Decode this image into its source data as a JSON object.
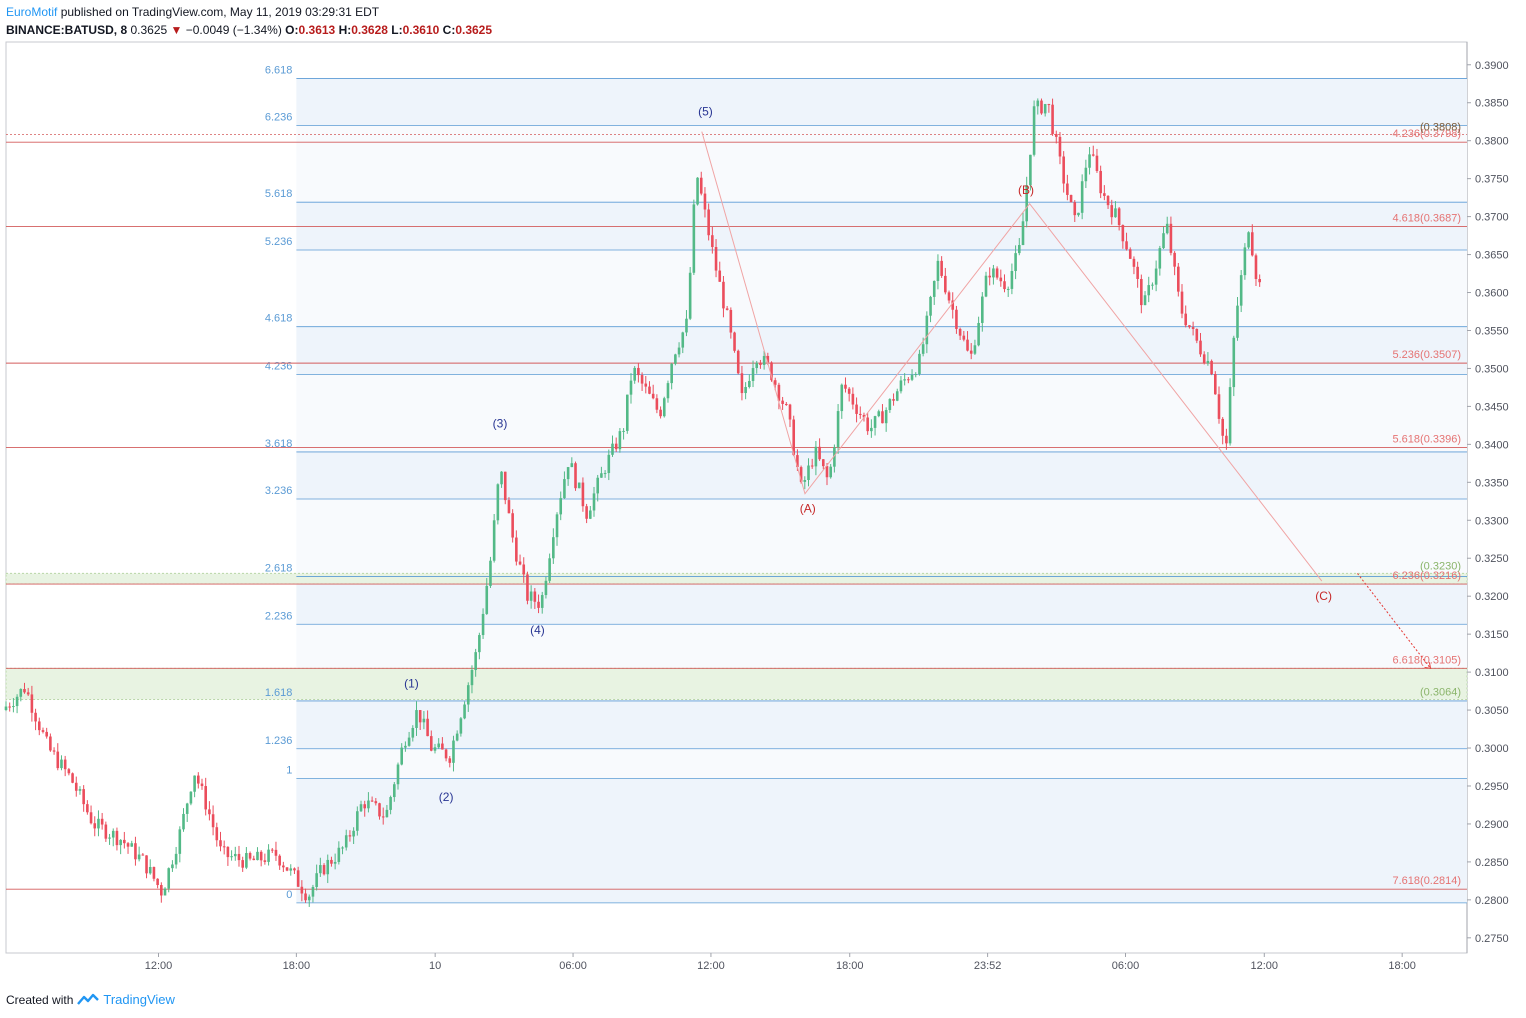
{
  "header": {
    "author": "EuroMotif",
    "published": "published on TradingView.com, May 11, 2019 03:29:31 EDT",
    "symbol": "BINANCE:BATUSD, 8",
    "last": "0.3625",
    "change": "−0.0049 (−1.34%)",
    "o_label": "O:",
    "o_val": "0.3613",
    "h_label": "H:",
    "h_val": "0.3628",
    "l_label": "L:",
    "l_val": "0.3610",
    "c_label": "C:",
    "c_val": "0.3625"
  },
  "footer": {
    "created": "Created with",
    "brand": "TradingView",
    "logo_icon": "tradingview-logo-icon"
  },
  "colors": {
    "up": "#53b987",
    "down": "#eb4d5c",
    "fib_blue": "#5b9bd5",
    "fib_red": "#e57373",
    "fib_green": "#8bb56b",
    "wave_blue": "#283593",
    "wave_red": "#c62828"
  },
  "chart_data": {
    "type": "candlestick",
    "ylim": [
      0.273,
      0.393
    ],
    "y_ticks": [
      "0.3900",
      "0.3850",
      "0.3800",
      "0.3750",
      "0.3700",
      "0.3650",
      "0.3600",
      "0.3550",
      "0.3500",
      "0.3450",
      "0.3400",
      "0.3350",
      "0.3300",
      "0.3250",
      "0.3200",
      "0.3150",
      "0.3100",
      "0.3050",
      "0.3000",
      "0.2950",
      "0.2900",
      "0.2850",
      "0.2800",
      "0.2750"
    ],
    "x_ticks": [
      {
        "label": "12:00",
        "t": 0.167
      },
      {
        "label": "18:00",
        "t": 0.318
      },
      {
        "label": "10",
        "t": 0.47
      },
      {
        "label": "06:00",
        "t": 0.621
      },
      {
        "label": "12:00",
        "t": 0.772
      },
      {
        "label": "18:00",
        "t": 0.924
      },
      {
        "label": "23:52",
        "t": 1.075
      },
      {
        "label": "06:00",
        "t": 1.226
      },
      {
        "label": "12:00",
        "t": 1.378
      },
      {
        "label": "18:00",
        "t": 1.529
      }
    ],
    "x_range": [
      0,
      1.6
    ],
    "left_fib": {
      "levels": [
        {
          "label": "6.618",
          "price": 0.3882
        },
        {
          "label": "6.236",
          "price": 0.382
        },
        {
          "label": "5.618",
          "price": 0.3719
        },
        {
          "label": "5.236",
          "price": 0.3656
        },
        {
          "label": "4.618",
          "price": 0.3555
        },
        {
          "label": "4.236",
          "price": 0.3492
        },
        {
          "label": "3.618",
          "price": 0.339
        },
        {
          "label": "3.236",
          "price": 0.3328
        },
        {
          "label": "2.618",
          "price": 0.3226
        },
        {
          "label": "2.236",
          "price": 0.3163
        },
        {
          "label": "1.618",
          "price": 0.3062
        },
        {
          "label": "1.236",
          "price": 0.2999
        },
        {
          "label": "1",
          "price": 0.296
        },
        {
          "label": "0",
          "price": 0.2796
        }
      ],
      "t_start": 0.318
    },
    "right_fib": [
      {
        "label": "4.236",
        "value": "(0.3798)",
        "price": 0.3798
      },
      {
        "label": "4.618",
        "value": "(0.3687)",
        "price": 0.3687
      },
      {
        "label": "5.236",
        "value": "(0.3507)",
        "price": 0.3507
      },
      {
        "label": "5.618",
        "value": "(0.3396)",
        "price": 0.3396
      },
      {
        "label": "6.236",
        "value": "(0.3216)",
        "price": 0.3216
      },
      {
        "label": "6.618",
        "value": "(0.3105)",
        "price": 0.3105
      },
      {
        "label": "7.618",
        "value": "(0.2814)",
        "price": 0.2814
      }
    ],
    "green_labels": [
      {
        "value": "(0.3808)",
        "price": 0.3808
      },
      {
        "value": "(0.3230)",
        "price": 0.323
      },
      {
        "value": "(0.3064)",
        "price": 0.3064
      }
    ],
    "green_zones": [
      [
        0.3216,
        0.323
      ],
      [
        0.3064,
        0.3105
      ]
    ],
    "waves": [
      {
        "label": "(1)",
        "t": 0.444,
        "price": 0.308,
        "color": "blue"
      },
      {
        "label": "(2)",
        "t": 0.482,
        "price": 0.293,
        "color": "blue"
      },
      {
        "label": "(3)",
        "t": 0.541,
        "price": 0.3422,
        "color": "blue"
      },
      {
        "label": "(4)",
        "t": 0.582,
        "price": 0.315,
        "color": "blue"
      },
      {
        "label": "(5)",
        "t": 0.766,
        "price": 0.3833,
        "color": "blue"
      },
      {
        "label": "(A)",
        "t": 0.878,
        "price": 0.331,
        "color": "red"
      },
      {
        "label": "(B)",
        "t": 1.117,
        "price": 0.373,
        "color": "red"
      },
      {
        "label": "(C)",
        "t": 1.443,
        "price": 0.3195,
        "color": "red"
      }
    ],
    "wave_lines": [
      [
        0.762,
        0.3812
      ],
      [
        0.875,
        0.3335
      ],
      [
        1.121,
        0.3717
      ],
      [
        1.441,
        0.322
      ]
    ],
    "projection": [
      [
        1.48,
        0.323
      ],
      [
        1.56,
        0.3105
      ]
    ],
    "path": [
      [
        0.0,
        0.305
      ],
      [
        0.025,
        0.308
      ],
      [
        0.05,
        0.3
      ],
      [
        0.075,
        0.296
      ],
      [
        0.1,
        0.29
      ],
      [
        0.13,
        0.288
      ],
      [
        0.155,
        0.285
      ],
      [
        0.175,
        0.281
      ],
      [
        0.195,
        0.289
      ],
      [
        0.21,
        0.297
      ],
      [
        0.225,
        0.292
      ],
      [
        0.24,
        0.286
      ],
      [
        0.27,
        0.285
      ],
      [
        0.3,
        0.286
      ],
      [
        0.32,
        0.283
      ],
      [
        0.335,
        0.2805
      ],
      [
        0.35,
        0.284
      ],
      [
        0.375,
        0.287
      ],
      [
        0.395,
        0.293
      ],
      [
        0.42,
        0.291
      ],
      [
        0.44,
        0.301
      ],
      [
        0.455,
        0.305
      ],
      [
        0.47,
        0.3
      ],
      [
        0.49,
        0.299
      ],
      [
        0.505,
        0.306
      ],
      [
        0.52,
        0.313
      ],
      [
        0.535,
        0.325
      ],
      [
        0.545,
        0.337
      ],
      [
        0.56,
        0.327
      ],
      [
        0.575,
        0.32
      ],
      [
        0.59,
        0.319
      ],
      [
        0.605,
        0.33
      ],
      [
        0.62,
        0.338
      ],
      [
        0.64,
        0.331
      ],
      [
        0.66,
        0.337
      ],
      [
        0.68,
        0.342
      ],
      [
        0.69,
        0.35
      ],
      [
        0.7,
        0.348
      ],
      [
        0.72,
        0.344
      ],
      [
        0.735,
        0.352
      ],
      [
        0.75,
        0.356
      ],
      [
        0.76,
        0.376
      ],
      [
        0.77,
        0.37
      ],
      [
        0.78,
        0.364
      ],
      [
        0.795,
        0.356
      ],
      [
        0.81,
        0.346
      ],
      [
        0.825,
        0.352
      ],
      [
        0.84,
        0.35
      ],
      [
        0.86,
        0.344
      ],
      [
        0.875,
        0.334
      ],
      [
        0.89,
        0.339
      ],
      [
        0.905,
        0.335
      ],
      [
        0.92,
        0.348
      ],
      [
        0.935,
        0.345
      ],
      [
        0.95,
        0.342
      ],
      [
        0.965,
        0.344
      ],
      [
        0.985,
        0.348
      ],
      [
        1.005,
        0.351
      ],
      [
        1.025,
        0.364
      ],
      [
        1.04,
        0.358
      ],
      [
        1.06,
        0.351
      ],
      [
        1.08,
        0.363
      ],
      [
        1.1,
        0.361
      ],
      [
        1.115,
        0.366
      ],
      [
        1.13,
        0.384
      ],
      [
        1.145,
        0.385
      ],
      [
        1.16,
        0.376
      ],
      [
        1.175,
        0.369
      ],
      [
        1.19,
        0.379
      ],
      [
        1.205,
        0.373
      ],
      [
        1.22,
        0.37
      ],
      [
        1.235,
        0.365
      ],
      [
        1.25,
        0.358
      ],
      [
        1.26,
        0.362
      ],
      [
        1.275,
        0.369
      ],
      [
        1.29,
        0.358
      ],
      [
        1.31,
        0.353
      ],
      [
        1.325,
        0.35
      ],
      [
        1.335,
        0.342
      ],
      [
        1.34,
        0.339
      ],
      [
        1.35,
        0.356
      ],
      [
        1.365,
        0.369
      ],
      [
        1.375,
        0.361
      ]
    ]
  }
}
